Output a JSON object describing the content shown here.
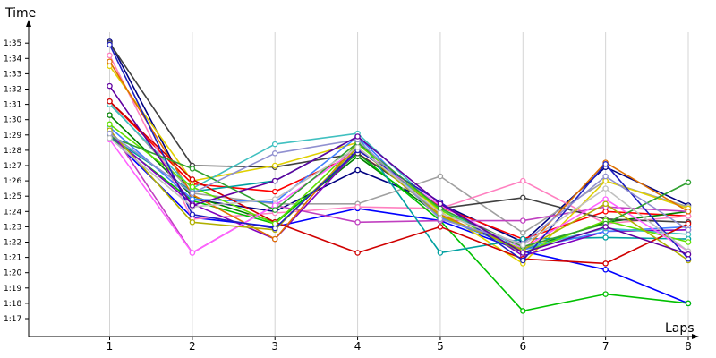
{
  "chart_data": {
    "type": "line",
    "xlabel": "Laps",
    "ylabel": "Time",
    "x": [
      1,
      2,
      3,
      4,
      5,
      6,
      7,
      8
    ],
    "x_tick_labels": [
      "1",
      "2",
      "3",
      "4",
      "5",
      "6",
      "7",
      "8"
    ],
    "y_tick_labels": [
      "1:17",
      "1:18",
      "1:19",
      "1:20",
      "1:21",
      "1:22",
      "1:23",
      "1:24",
      "1:25",
      "1:26",
      "1:27",
      "1:28",
      "1:29",
      "1:30",
      "1:31",
      "1:32",
      "1:33",
      "1:34",
      "1:35"
    ],
    "ylim": [
      76,
      96
    ],
    "grid": "vertical",
    "series": [
      {
        "color": "#000080",
        "values": [
          95.1,
          84.8,
          84.0,
          86.7,
          84.5,
          82.0,
          86.9,
          84.4
        ]
      },
      {
        "color": "#ff0000",
        "values": [
          91.2,
          85.8,
          85.3,
          87.8,
          84.3,
          82.2,
          84.0,
          83.7
        ]
      },
      {
        "color": "#008000",
        "values": [
          90.3,
          85.0,
          83.3,
          87.6,
          83.7,
          81.5,
          83.3,
          84.0
        ]
      },
      {
        "color": "#0000ff",
        "values": [
          88.9,
          83.6,
          83.0,
          84.2,
          83.4,
          81.4,
          80.2,
          78.0
        ]
      },
      {
        "color": "#a0a0a0",
        "values": [
          91.1,
          85.2,
          84.5,
          84.5,
          86.3,
          82.6,
          86.0,
          84.3
        ]
      },
      {
        "color": "#ff80c0",
        "values": [
          94.2,
          83.5,
          83.9,
          84.3,
          84.2,
          86.0,
          83.2,
          83.7
        ]
      },
      {
        "color": "#00c000",
        "values": [
          88.9,
          84.7,
          83.2,
          87.8,
          83.4,
          77.5,
          78.6,
          78.0
        ]
      },
      {
        "color": "#c040c0",
        "values": [
          89.4,
          81.3,
          84.4,
          83.3,
          83.4,
          83.4,
          84.3,
          84.0
        ]
      },
      {
        "color": "#404040",
        "values": [
          95.0,
          87.0,
          86.9,
          87.8,
          84.2,
          84.9,
          83.5,
          83.3
        ]
      },
      {
        "color": "#e0d000",
        "values": [
          93.5,
          86.0,
          87.0,
          88.5,
          84.0,
          80.6,
          86.0,
          84.2
        ]
      },
      {
        "color": "#00a0a0",
        "values": [
          88.9,
          85.3,
          86.0,
          88.9,
          81.3,
          82.2,
          82.3,
          82.2
        ]
      },
      {
        "color": "#8000c0",
        "values": [
          89.0,
          84.5,
          82.2,
          88.0,
          84.6,
          81.1,
          82.7,
          82.8
        ]
      },
      {
        "color": "#e07000",
        "values": [
          93.8,
          85.1,
          82.2,
          88.5,
          83.8,
          81.4,
          87.2,
          84.0
        ]
      },
      {
        "color": "#4080ff",
        "values": [
          89.5,
          84.8,
          84.6,
          88.9,
          83.6,
          81.5,
          82.7,
          83.0
        ]
      },
      {
        "color": "#40c0c0",
        "values": [
          91.0,
          85.5,
          88.4,
          89.1,
          84.1,
          81.6,
          82.9,
          82.5
        ]
      },
      {
        "color": "#d00000",
        "values": [
          91.2,
          86.1,
          83.3,
          81.3,
          83.0,
          80.9,
          80.6,
          83.2
        ]
      },
      {
        "color": "#60e000",
        "values": [
          89.7,
          85.6,
          83.2,
          88.4,
          84.1,
          81.3,
          83.4,
          82.0
        ]
      },
      {
        "color": "#ff60ff",
        "values": [
          88.7,
          81.3,
          84.4,
          88.1,
          84.4,
          81.6,
          84.8,
          81.4
        ]
      },
      {
        "color": "#b0b000",
        "values": [
          89.3,
          83.3,
          82.8,
          88.2,
          83.7,
          81.5,
          84.5,
          80.8
        ]
      },
      {
        "color": "#2020c0",
        "values": [
          94.9,
          83.8,
          82.9,
          88.0,
          84.6,
          80.8,
          87.1,
          80.9
        ]
      },
      {
        "color": "#30a030",
        "values": [
          88.9,
          86.8,
          84.1,
          88.5,
          84.2,
          81.7,
          83.2,
          85.9
        ]
      },
      {
        "color": "#9090d0",
        "values": [
          89.1,
          85.2,
          87.8,
          88.7,
          83.5,
          81.9,
          86.3,
          82.8
        ]
      },
      {
        "color": "#c0c0c0",
        "values": [
          88.8,
          84.3,
          84.8,
          88.2,
          83.9,
          81.8,
          85.5,
          81.4
        ]
      },
      {
        "color": "#6000a0",
        "values": [
          92.2,
          84.4,
          86.0,
          88.9,
          84.5,
          81.3,
          83.0,
          81.2
        ]
      }
    ]
  }
}
